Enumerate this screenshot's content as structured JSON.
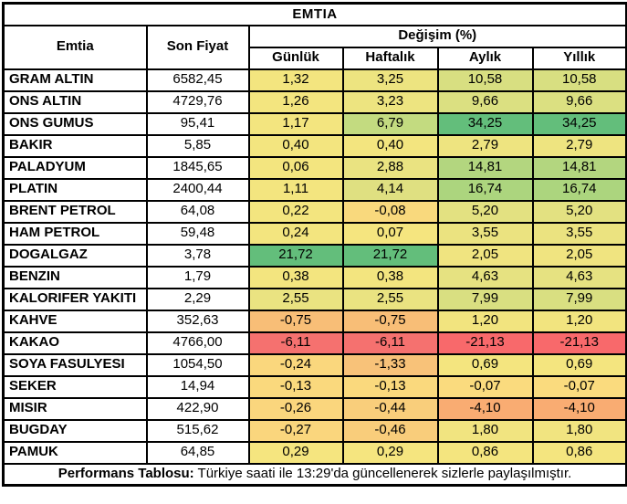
{
  "title": "EMTIA",
  "header": {
    "emtia": "Emtia",
    "son_fiyat": "Son Fiyat",
    "degisim": "Değişim (%)",
    "sub": [
      "Günlük",
      "Haftalık",
      "Aylık",
      "Yıllık"
    ]
  },
  "rows": [
    {
      "name": "GRAM ALTIN",
      "price": "6582,45",
      "changes": [
        "1,32",
        "3,25",
        "10,58",
        "10,58"
      ],
      "colors": [
        "#F3E57F",
        "#EDE480",
        "#D8DF81",
        "#D8DF81"
      ]
    },
    {
      "name": "ONS ALTIN",
      "price": "4729,76",
      "changes": [
        "1,26",
        "3,23",
        "9,66",
        "9,66"
      ],
      "colors": [
        "#F3E57F",
        "#EDE480",
        "#DBE081",
        "#DBE081"
      ]
    },
    {
      "name": "ONS GUMUS",
      "price": "95,41",
      "changes": [
        "1,17",
        "6,79",
        "34,25",
        "34,25"
      ],
      "colors": [
        "#F3E57F",
        "#C3DB80",
        "#63BE7B",
        "#63BE7B"
      ]
    },
    {
      "name": "BAKIR",
      "price": "5,85",
      "changes": [
        "0,40",
        "0,40",
        "2,79",
        "2,79"
      ],
      "colors": [
        "#F3E57F",
        "#F3E57F",
        "#EEE480",
        "#EEE480"
      ]
    },
    {
      "name": "PALADYUM",
      "price": "1845,65",
      "changes": [
        "0,06",
        "2,88",
        "14,81",
        "14,81"
      ],
      "colors": [
        "#F3E57F",
        "#EAE381",
        "#B3D67F",
        "#B3D67F"
      ]
    },
    {
      "name": "PLATIN",
      "price": "2400,44",
      "changes": [
        "1,11",
        "4,14",
        "16,74",
        "16,74"
      ],
      "colors": [
        "#F3E57F",
        "#DFE081",
        "#ACD57E",
        "#ACD57E"
      ]
    },
    {
      "name": "BRENT PETROL",
      "price": "64,08",
      "changes": [
        "0,22",
        "-0,08",
        "5,20",
        "5,20"
      ],
      "colors": [
        "#F3E57F",
        "#F9D97D",
        "#E3E181",
        "#E3E181"
      ]
    },
    {
      "name": "HAM PETROL",
      "price": "59,48",
      "changes": [
        "0,24",
        "0,07",
        "3,55",
        "3,55"
      ],
      "colors": [
        "#F3E57F",
        "#F5E57F",
        "#EBE380",
        "#EBE380"
      ]
    },
    {
      "name": "DOGALGAZ",
      "price": "3,78",
      "changes": [
        "21,72",
        "21,72",
        "2,05",
        "2,05"
      ],
      "colors": [
        "#63BE7B",
        "#63BE7B",
        "#F0E480",
        "#F0E480"
      ]
    },
    {
      "name": "BENZIN",
      "price": "1,79",
      "changes": [
        "0,38",
        "0,38",
        "4,63",
        "4,63"
      ],
      "colors": [
        "#F3E57F",
        "#F3E57F",
        "#E6E281",
        "#E6E281"
      ]
    },
    {
      "name": "KALORIFER YAKITI",
      "price": "2,29",
      "changes": [
        "2,55",
        "2,55",
        "7,99",
        "7,99"
      ],
      "colors": [
        "#EAE381",
        "#EAE381",
        "#D9DF81",
        "#D9DF81"
      ]
    },
    {
      "name": "KAHVE",
      "price": "352,63",
      "changes": [
        "-0,75",
        "-0,75",
        "1,20",
        "1,20"
      ],
      "colors": [
        "#F8BE77",
        "#F8BE77",
        "#F2E47F",
        "#F2E47F"
      ]
    },
    {
      "name": "KAKAO",
      "price": "4766,00",
      "changes": [
        "-6,11",
        "-6,11",
        "-21,13",
        "-21,13"
      ],
      "colors": [
        "#F5716F",
        "#F5716F",
        "#F8696B",
        "#F8696B"
      ]
    },
    {
      "name": "SOYA FASULYESI",
      "price": "1054,50",
      "changes": [
        "-0,24",
        "-1,33",
        "0,69",
        "0,69"
      ],
      "colors": [
        "#FAD77D",
        "#F8C279",
        "#F4E57F",
        "#F4E57F"
      ]
    },
    {
      "name": "SEKER",
      "price": "14,94",
      "changes": [
        "-0,13",
        "-0,13",
        "-0,07",
        "-0,07"
      ],
      "colors": [
        "#FAD97D",
        "#FAD97D",
        "#FADB7E",
        "#FADB7E"
      ]
    },
    {
      "name": "MISIR",
      "price": "422,90",
      "changes": [
        "-0,26",
        "-0,44",
        "-4,10",
        "-4,10"
      ],
      "colors": [
        "#FAD67D",
        "#F9CE7B",
        "#F9AC72",
        "#F9AC72"
      ]
    },
    {
      "name": "BUGDAY",
      "price": "515,62",
      "changes": [
        "-0,27",
        "-0,46",
        "1,80",
        "1,80"
      ],
      "colors": [
        "#FAD67D",
        "#F9CD7B",
        "#F1E480",
        "#F1E480"
      ]
    },
    {
      "name": "PAMUK",
      "price": "64,85",
      "changes": [
        "0,29",
        "0,29",
        "0,86",
        "0,86"
      ],
      "colors": [
        "#F5E57F",
        "#F5E57F",
        "#F4E57F",
        "#F4E57F"
      ]
    }
  ],
  "footer": {
    "label": "Performans Tablosu:",
    "text": " Türkiye saati ile 13:29'da güncellenerek sizlerle paylaşılmıştır."
  },
  "colors": {
    "scale_positive_high": "#63BE7B",
    "scale_neutral": "#F3E57F",
    "scale_negative_low": "#F8696B",
    "border": "#000000",
    "background": "#FFFFFF"
  },
  "chart_data": {
    "type": "table",
    "title": "EMTIA",
    "columns": [
      "Emtia",
      "Son Fiyat",
      "Günlük",
      "Haftalık",
      "Aylık",
      "Yıllık"
    ],
    "column_group": {
      "label": "Değişim (%)",
      "spans": [
        "Günlük",
        "Haftalık",
        "Aylık",
        "Yıllık"
      ]
    },
    "rows": [
      [
        "GRAM ALTIN",
        6582.45,
        1.32,
        3.25,
        10.58,
        10.58
      ],
      [
        "ONS ALTIN",
        4729.76,
        1.26,
        3.23,
        9.66,
        9.66
      ],
      [
        "ONS GUMUS",
        95.41,
        1.17,
        6.79,
        34.25,
        34.25
      ],
      [
        "BAKIR",
        5.85,
        0.4,
        0.4,
        2.79,
        2.79
      ],
      [
        "PALADYUM",
        1845.65,
        0.06,
        2.88,
        14.81,
        14.81
      ],
      [
        "PLATIN",
        2400.44,
        1.11,
        4.14,
        16.74,
        16.74
      ],
      [
        "BRENT PETROL",
        64.08,
        0.22,
        -0.08,
        5.2,
        5.2
      ],
      [
        "HAM PETROL",
        59.48,
        0.24,
        0.07,
        3.55,
        3.55
      ],
      [
        "DOGALGAZ",
        3.78,
        21.72,
        21.72,
        2.05,
        2.05
      ],
      [
        "BENZIN",
        1.79,
        0.38,
        0.38,
        4.63,
        4.63
      ],
      [
        "KALORIFER YAKITI",
        2.29,
        2.55,
        2.55,
        7.99,
        7.99
      ],
      [
        "KAHVE",
        352.63,
        -0.75,
        -0.75,
        1.2,
        1.2
      ],
      [
        "KAKAO",
        4766.0,
        -6.11,
        -6.11,
        -21.13,
        -21.13
      ],
      [
        "SOYA FASULYESI",
        1054.5,
        -0.24,
        -1.33,
        0.69,
        0.69
      ],
      [
        "SEKER",
        14.94,
        -0.13,
        -0.13,
        -0.07,
        -0.07
      ],
      [
        "MISIR",
        422.9,
        -0.26,
        -0.44,
        -4.1,
        -4.1
      ],
      [
        "BUGDAY",
        515.62,
        -0.27,
        -0.46,
        1.8,
        1.8
      ],
      [
        "PAMUK",
        64.85,
        0.29,
        0.29,
        0.86,
        0.86
      ]
    ],
    "notes": "Change cells use a red-yellow-green conditional-format color scale; footer states data updated at 13:29 Turkish time."
  }
}
